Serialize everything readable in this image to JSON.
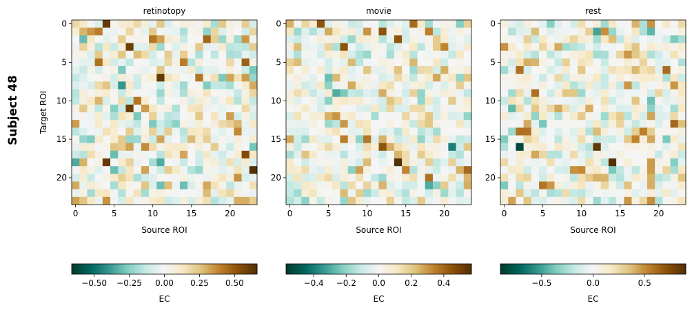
{
  "figure": {
    "side_title": "Subject 48",
    "ylabel": "Target ROI",
    "xlabel": "Source ROI",
    "cbar_label": "EC"
  },
  "chart_data": [
    {
      "type": "heatmap",
      "title": "retinotopy",
      "xlabel": "Source ROI",
      "ylabel": "Target ROI",
      "x_ticks": [
        0,
        5,
        10,
        15,
        20
      ],
      "y_ticks": [
        0,
        5,
        10,
        15,
        20
      ],
      "n_rows": 24,
      "n_cols": 24,
      "colormap": "BrBG_r",
      "clim": [
        -0.66,
        0.66
      ],
      "colorbar_ticks": [
        "−0.50",
        "−0.25",
        "0.00",
        "0.25",
        "0.50"
      ],
      "colorbar_tick_values": [
        -0.5,
        -0.25,
        0.0,
        0.25,
        0.5
      ],
      "colorbar_label": "EC",
      "strong_cells": [
        {
          "row": 0,
          "col": 4,
          "value": 0.62
        },
        {
          "row": 3,
          "col": 7,
          "value": 0.6
        },
        {
          "row": 7,
          "col": 11,
          "value": 0.62
        },
        {
          "row": 11,
          "col": 7,
          "value": 0.6
        },
        {
          "row": 18,
          "col": 4,
          "value": 0.62
        },
        {
          "row": 19,
          "col": 23,
          "value": 0.66
        },
        {
          "row": 17,
          "col": 22,
          "value": 0.55
        },
        {
          "row": 8,
          "col": 6,
          "value": -0.4
        },
        {
          "row": 18,
          "col": 0,
          "value": -0.35
        },
        {
          "row": 18,
          "col": 11,
          "value": -0.35
        },
        {
          "row": 21,
          "col": 11,
          "value": -0.3
        },
        {
          "row": 21,
          "col": 14,
          "value": -0.3
        }
      ]
    },
    {
      "type": "heatmap",
      "title": "movie",
      "xlabel": "Source ROI",
      "x_ticks": [
        0,
        5,
        10,
        15,
        20
      ],
      "y_ticks": [
        0,
        5,
        10,
        15,
        20
      ],
      "n_rows": 24,
      "n_cols": 24,
      "colormap": "BrBG_r",
      "clim": [
        -0.57,
        0.57
      ],
      "colorbar_ticks": [
        "−0.4",
        "−0.2",
        "0.0",
        "0.2",
        "0.4"
      ],
      "colorbar_tick_values": [
        -0.4,
        -0.2,
        0.0,
        0.2,
        0.4
      ],
      "colorbar_label": "EC",
      "strong_cells": [
        {
          "row": 0,
          "col": 4,
          "value": 0.45
        },
        {
          "row": 1,
          "col": 12,
          "value": 0.45
        },
        {
          "row": 2,
          "col": 14,
          "value": 0.45
        },
        {
          "row": 3,
          "col": 7,
          "value": 0.45
        },
        {
          "row": 16,
          "col": 12,
          "value": 0.45
        },
        {
          "row": 18,
          "col": 14,
          "value": 0.57
        },
        {
          "row": 19,
          "col": 23,
          "value": 0.4
        },
        {
          "row": 16,
          "col": 21,
          "value": -0.4
        },
        {
          "row": 9,
          "col": 6,
          "value": -0.3
        },
        {
          "row": 21,
          "col": 18,
          "value": -0.3
        }
      ]
    },
    {
      "type": "heatmap",
      "title": "rest",
      "xlabel": "Source ROI",
      "x_ticks": [
        0,
        5,
        10,
        15,
        20
      ],
      "y_ticks": [
        0,
        5,
        10,
        15,
        20
      ],
      "n_rows": 24,
      "n_cols": 24,
      "colormap": "BrBG_r",
      "clim": [
        -0.9,
        0.9
      ],
      "colorbar_ticks": [
        "−0.5",
        "0.0",
        "0.5"
      ],
      "colorbar_tick_values": [
        -0.5,
        0.0,
        0.5
      ],
      "colorbar_label": "EC",
      "strong_cells": [
        {
          "row": 16,
          "col": 12,
          "value": 0.85
        },
        {
          "row": 18,
          "col": 14,
          "value": 0.9
        },
        {
          "row": 1,
          "col": 13,
          "value": 0.5
        },
        {
          "row": 6,
          "col": 2,
          "value": 0.6
        },
        {
          "row": 14,
          "col": 2,
          "value": 0.6
        },
        {
          "row": 14,
          "col": 18,
          "value": 0.55
        },
        {
          "row": 23,
          "col": 19,
          "value": 0.5
        },
        {
          "row": 16,
          "col": 2,
          "value": -0.85
        },
        {
          "row": 1,
          "col": 12,
          "value": -0.5
        },
        {
          "row": 1,
          "col": 14,
          "value": -0.3
        }
      ]
    }
  ]
}
